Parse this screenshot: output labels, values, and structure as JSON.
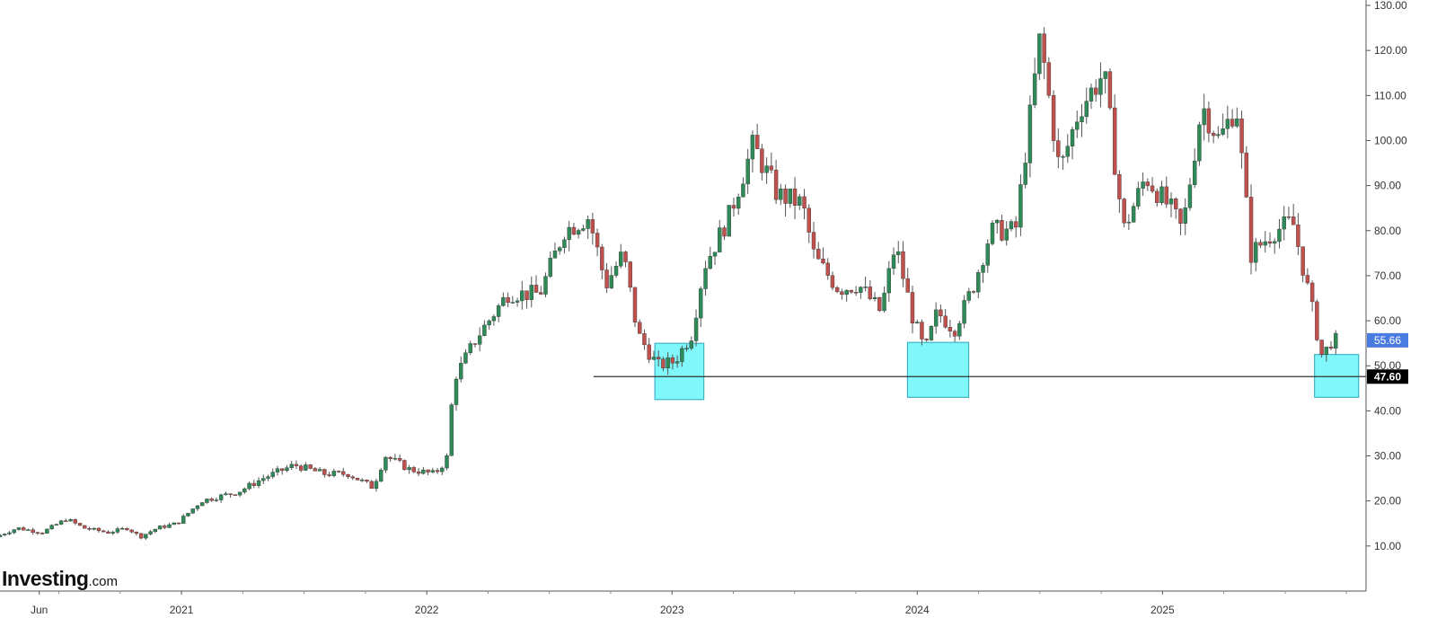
{
  "colors": {
    "up": "#2e8b57",
    "down": "#c0504d",
    "wick": "#555555",
    "zone_fill": "#7ff7fb",
    "zone_stroke": "#2aa6b8",
    "support_line": "#333333",
    "current_badge": "#4a7be0",
    "support_badge": "#000000"
  },
  "branding": {
    "logo_main": "Investing",
    "logo_suffix": ".com"
  },
  "chart_data": {
    "type": "candlestick",
    "title": "",
    "xlabel": "",
    "ylabel": "",
    "ylim": [
      0,
      130
    ],
    "y_ticks": [
      "10.00",
      "20.00",
      "30.00",
      "40.00",
      "50.00",
      "60.00",
      "70.00",
      "80.00",
      "90.00",
      "100.00",
      "110.00",
      "120.00",
      "130.00"
    ],
    "x_labels": [
      {
        "label": "Jun",
        "t": 2020.42
      },
      {
        "label": "2021",
        "t": 2021.0
      },
      {
        "label": "2022",
        "t": 2022.0
      },
      {
        "label": "2023",
        "t": 2023.0
      },
      {
        "label": "2024",
        "t": 2024.0
      },
      {
        "label": "2025",
        "t": 2025.0
      }
    ],
    "x_range": [
      2020.26,
      2025.83
    ],
    "grid": false,
    "price_path": [
      [
        2020.26,
        12
      ],
      [
        2020.35,
        14
      ],
      [
        2020.45,
        13
      ],
      [
        2020.55,
        16
      ],
      [
        2020.62,
        14
      ],
      [
        2020.72,
        13
      ],
      [
        2020.8,
        14
      ],
      [
        2020.85,
        12
      ],
      [
        2020.92,
        14
      ],
      [
        2021.0,
        15
      ],
      [
        2021.1,
        20
      ],
      [
        2021.25,
        22
      ],
      [
        2021.35,
        25
      ],
      [
        2021.48,
        28
      ],
      [
        2021.6,
        26
      ],
      [
        2021.7,
        26
      ],
      [
        2021.8,
        23
      ],
      [
        2021.85,
        30
      ],
      [
        2021.95,
        27
      ],
      [
        2022.05,
        26
      ],
      [
        2022.1,
        29
      ],
      [
        2022.13,
        47
      ],
      [
        2022.22,
        56
      ],
      [
        2022.35,
        66
      ],
      [
        2022.48,
        66
      ],
      [
        2022.58,
        80
      ],
      [
        2022.68,
        83
      ],
      [
        2022.75,
        68
      ],
      [
        2022.82,
        75
      ],
      [
        2022.88,
        57
      ],
      [
        2022.96,
        50
      ],
      [
        2023.03,
        51
      ],
      [
        2023.1,
        57
      ],
      [
        2023.15,
        72
      ],
      [
        2023.25,
        83
      ],
      [
        2023.35,
        99
      ],
      [
        2023.45,
        88
      ],
      [
        2023.55,
        86
      ],
      [
        2023.6,
        74
      ],
      [
        2023.7,
        67
      ],
      [
        2023.78,
        68
      ],
      [
        2023.87,
        62
      ],
      [
        2023.93,
        77
      ],
      [
        2024.0,
        61
      ],
      [
        2024.05,
        53
      ],
      [
        2024.1,
        62
      ],
      [
        2024.17,
        58
      ],
      [
        2024.25,
        68
      ],
      [
        2024.32,
        80
      ],
      [
        2024.42,
        80
      ],
      [
        2024.52,
        123
      ],
      [
        2024.6,
        93
      ],
      [
        2024.68,
        107
      ],
      [
        2024.78,
        115
      ],
      [
        2024.86,
        80
      ],
      [
        2024.95,
        92
      ],
      [
        2025.05,
        85
      ],
      [
        2025.1,
        80
      ],
      [
        2025.18,
        108
      ],
      [
        2025.25,
        100
      ],
      [
        2025.32,
        108
      ],
      [
        2025.38,
        75
      ],
      [
        2025.48,
        80
      ],
      [
        2025.55,
        82
      ],
      [
        2025.6,
        70
      ],
      [
        2025.67,
        52
      ],
      [
        2025.71,
        55.66
      ]
    ],
    "support": {
      "value": 47.6,
      "label": "47.60",
      "t_start": 2022.68,
      "t_end": 2025.8
    },
    "current_price": {
      "value": 55.66,
      "label": "55.66"
    },
    "zones": [
      {
        "t_start": 2022.93,
        "t_end": 2023.13,
        "y_low": 42.5,
        "y_high": 55
      },
      {
        "t_start": 2023.96,
        "t_end": 2024.21,
        "y_low": 43,
        "y_high": 55.2
      },
      {
        "t_start": 2025.62,
        "t_end": 2025.8,
        "y_low": 43,
        "y_high": 52.5
      }
    ]
  }
}
